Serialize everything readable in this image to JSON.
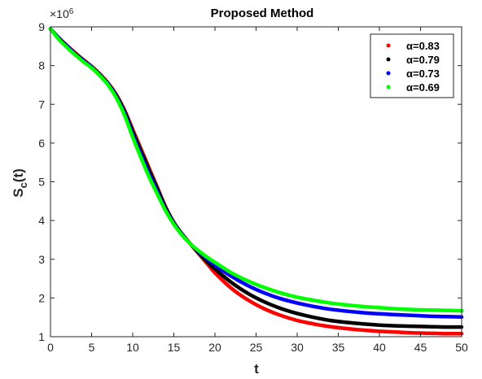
{
  "chart_data": {
    "type": "line",
    "title": "Proposed Method",
    "xlabel": "t",
    "ylabel_main": "S",
    "ylabel_sub": "c",
    "ylabel_suffix": "(t)",
    "y_multiplier_base": "×10",
    "y_multiplier_exp": "6",
    "xlim": [
      0,
      50
    ],
    "ylim": [
      1,
      9
    ],
    "xticks": [
      0,
      5,
      10,
      15,
      20,
      25,
      30,
      35,
      40,
      45,
      50
    ],
    "yticks": [
      1,
      2,
      3,
      4,
      5,
      6,
      7,
      8,
      9
    ],
    "legend_position": "top-right",
    "grid": false,
    "x": [
      0,
      1,
      2,
      3,
      4,
      5,
      6,
      7,
      8,
      9,
      10,
      11,
      12,
      13,
      14,
      15,
      16,
      17,
      18,
      19,
      20,
      22,
      24,
      26,
      28,
      30,
      32,
      34,
      36,
      38,
      40,
      42,
      44,
      46,
      48,
      50
    ],
    "series": [
      {
        "name": "α=0.83",
        "color": "#ff0000",
        "values": [
          8.95,
          8.72,
          8.52,
          8.33,
          8.15,
          7.98,
          7.78,
          7.55,
          7.25,
          6.85,
          6.35,
          5.85,
          5.35,
          4.85,
          4.35,
          3.95,
          3.65,
          3.4,
          3.15,
          2.9,
          2.65,
          2.25,
          1.95,
          1.72,
          1.55,
          1.42,
          1.33,
          1.26,
          1.21,
          1.17,
          1.14,
          1.12,
          1.1,
          1.09,
          1.08,
          1.08
        ]
      },
      {
        "name": "α=0.79",
        "color": "#000000",
        "values": [
          8.95,
          8.71,
          8.5,
          8.31,
          8.13,
          7.97,
          7.77,
          7.53,
          7.23,
          6.82,
          6.3,
          5.8,
          5.3,
          4.82,
          4.33,
          3.95,
          3.65,
          3.4,
          3.17,
          2.95,
          2.75,
          2.4,
          2.12,
          1.9,
          1.73,
          1.6,
          1.5,
          1.42,
          1.37,
          1.33,
          1.3,
          1.28,
          1.27,
          1.26,
          1.25,
          1.25
        ]
      },
      {
        "name": "α=0.73",
        "color": "#0000ff",
        "values": [
          8.95,
          8.7,
          8.49,
          8.3,
          8.12,
          7.96,
          7.76,
          7.52,
          7.2,
          6.77,
          6.22,
          5.7,
          5.2,
          4.74,
          4.28,
          3.92,
          3.63,
          3.4,
          3.2,
          3.02,
          2.85,
          2.56,
          2.32,
          2.13,
          1.98,
          1.87,
          1.78,
          1.71,
          1.66,
          1.62,
          1.59,
          1.57,
          1.55,
          1.53,
          1.52,
          1.51
        ]
      },
      {
        "name": "α=0.69",
        "color": "#00ff00",
        "values": [
          8.95,
          8.68,
          8.47,
          8.28,
          8.1,
          7.94,
          7.74,
          7.5,
          7.17,
          6.72,
          6.15,
          5.62,
          5.12,
          4.68,
          4.25,
          3.9,
          3.62,
          3.4,
          3.22,
          3.06,
          2.92,
          2.65,
          2.44,
          2.27,
          2.13,
          2.02,
          1.94,
          1.87,
          1.82,
          1.78,
          1.75,
          1.72,
          1.7,
          1.69,
          1.68,
          1.67
        ]
      }
    ]
  }
}
